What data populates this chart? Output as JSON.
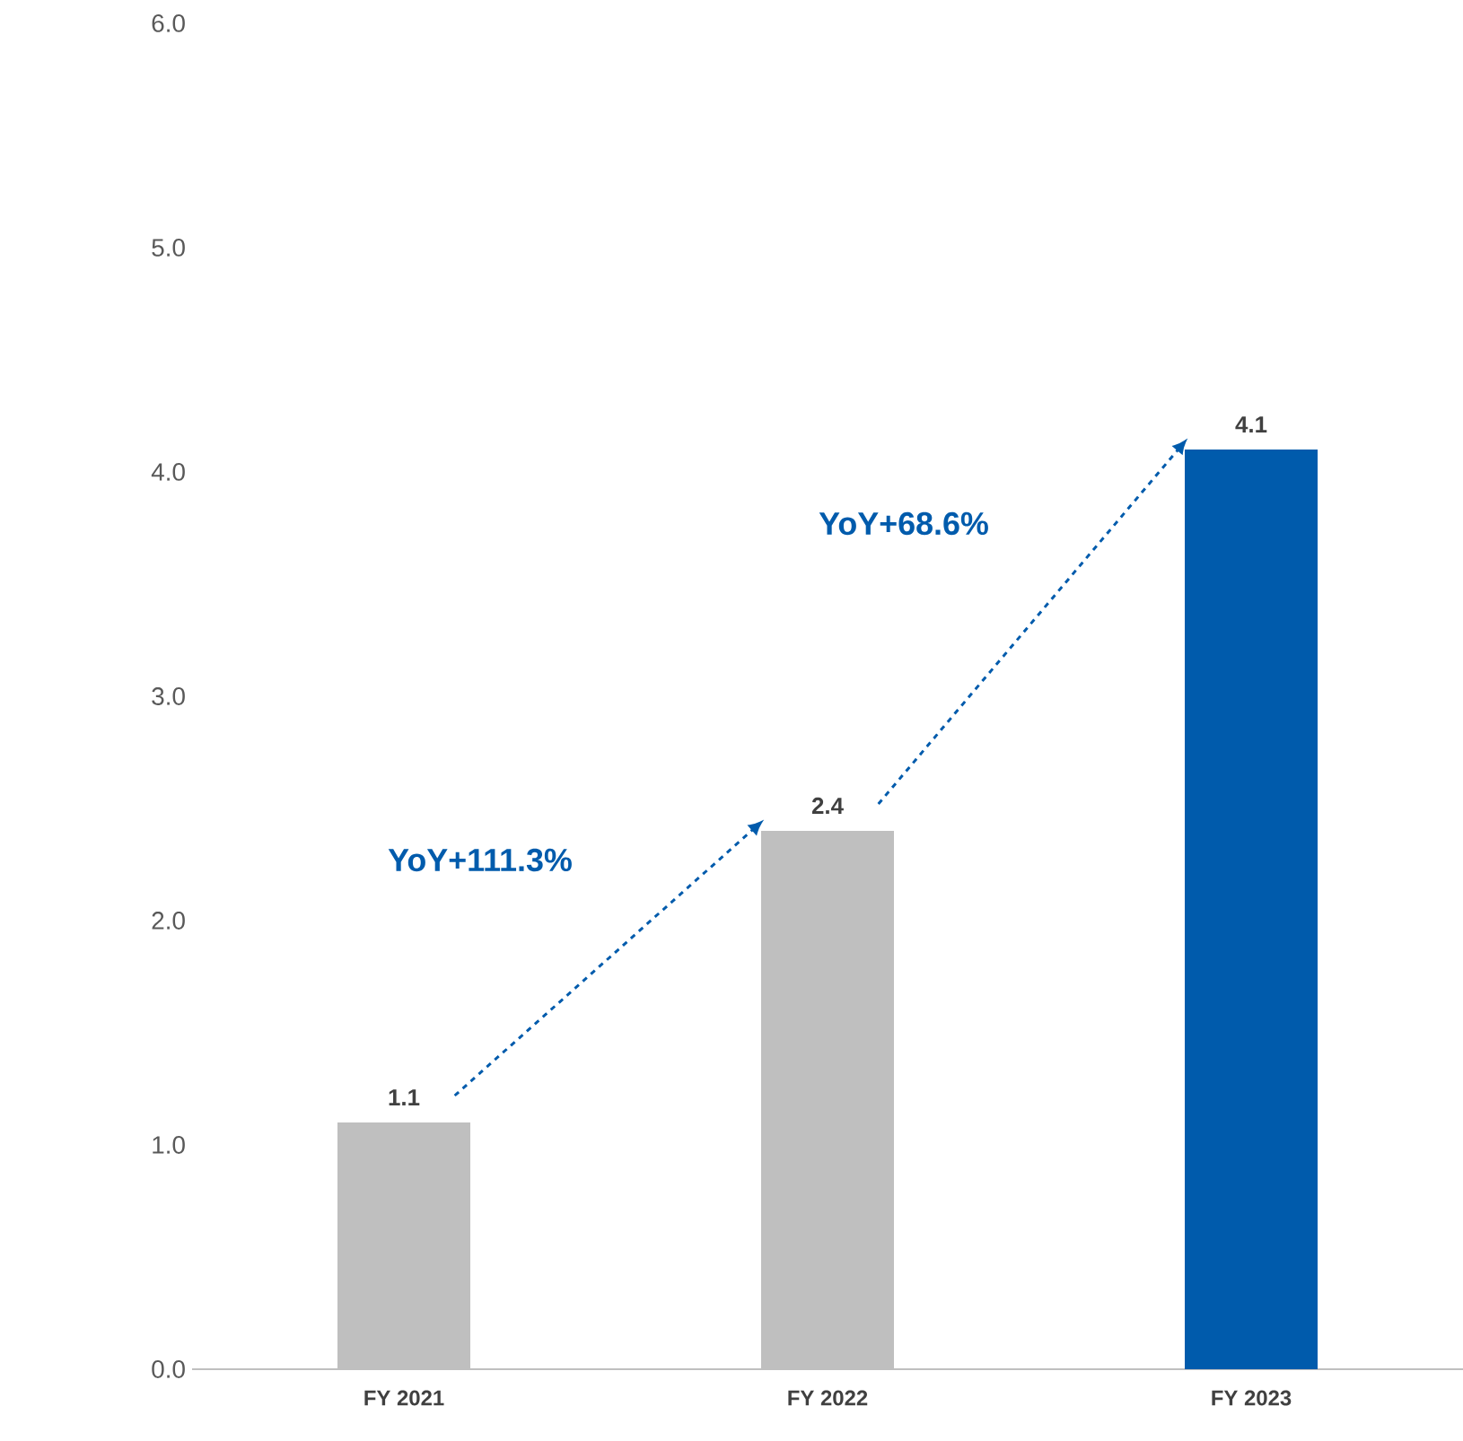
{
  "chart_data": {
    "type": "bar",
    "categories": [
      "FY 2021",
      "FY 2022",
      "FY 2023"
    ],
    "values": [
      1.1,
      2.4,
      4.1
    ],
    "colors": [
      "#bfbfbf",
      "#bfbfbf",
      "#005bac"
    ],
    "ylim": [
      0,
      6
    ],
    "yticks": [
      {
        "value": 0,
        "label": "0.0"
      },
      {
        "value": 1,
        "label": "1.0"
      },
      {
        "value": 2,
        "label": "2.0"
      },
      {
        "value": 3,
        "label": "3.0"
      },
      {
        "value": 4,
        "label": "4.0"
      },
      {
        "value": 5,
        "label": "5.0"
      },
      {
        "value": 6,
        "label": "6.0"
      }
    ],
    "data_labels": true,
    "annotations": [
      "YoY+111.3%",
      "YoY+68.6%"
    ]
  }
}
